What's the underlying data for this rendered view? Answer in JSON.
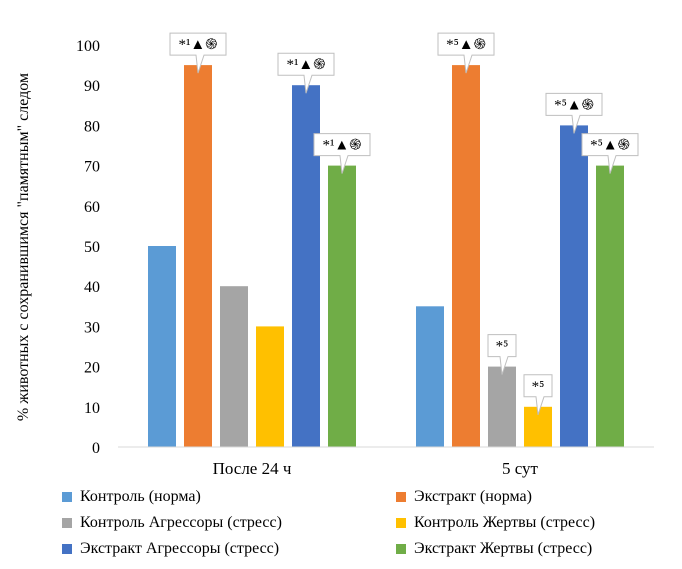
{
  "chart_data": {
    "type": "bar",
    "ylabel": "% животных с сохранившимся \"памятным\" следом",
    "ylim": [
      0,
      100
    ],
    "yticks": [
      0,
      10,
      20,
      30,
      40,
      50,
      60,
      70,
      80,
      90,
      100
    ],
    "categories": [
      "После 24 ч",
      "5 сут"
    ],
    "grid": false,
    "legend_position": "bottom",
    "series": [
      {
        "name": "Контроль (норма)",
        "color": "#5B9BD5",
        "values": [
          50,
          35
        ],
        "annotations": [
          "",
          ""
        ]
      },
      {
        "name": "Экстракт (норма)",
        "color": "#ED7D31",
        "values": [
          95,
          95
        ],
        "annotations": [
          "*¹▲֍",
          "*⁵▲֍"
        ]
      },
      {
        "name": "Контроль Агрессоры (стресс)",
        "color": "#A5A5A5",
        "values": [
          40,
          20
        ],
        "annotations": [
          "",
          "*⁵"
        ]
      },
      {
        "name": "Контроль Жертвы (стресс)",
        "color": "#FFC000",
        "values": [
          30,
          10
        ],
        "annotations": [
          "",
          "*⁵"
        ]
      },
      {
        "name": "Экстракт Агрессоры (стресс)",
        "color": "#4472C4",
        "values": [
          90,
          80
        ],
        "annotations": [
          "*¹▲֍",
          "*⁵▲֍"
        ]
      },
      {
        "name": "Экстракт Жертвы (стресс)",
        "color": "#70AD47",
        "values": [
          70,
          70
        ],
        "annotations": [
          "*¹▲֍",
          "*⁵▲֍"
        ]
      }
    ]
  }
}
